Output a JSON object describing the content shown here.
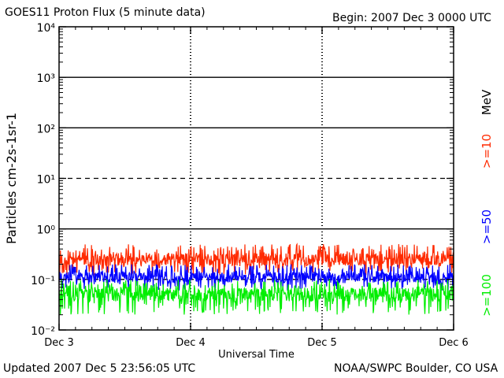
{
  "header": {
    "title": "GOES11 Proton Flux (5 minute data)",
    "begin": "Begin: 2007 Dec 3 0000 UTC"
  },
  "footer": {
    "updated": "Updated 2007 Dec  5 23:56:05 UTC",
    "source": "NOAA/SWPC Boulder, CO USA"
  },
  "chart_data": {
    "type": "line",
    "title": "GOES11 Proton Flux (5 minute data)",
    "xlabel": "Universal Time",
    "ylabel": "Particles cm-2s-1sr-1",
    "y_scale": "log",
    "ylim": [
      0.01,
      10000
    ],
    "y_tick_labels": [
      "10⁻²",
      "10⁻¹",
      "10⁰",
      "10¹",
      "10²",
      "10³",
      "10⁴"
    ],
    "x_ticks": [
      "Dec 3",
      "Dec 4",
      "Dec 5",
      "Dec 6"
    ],
    "xlim": [
      "Dec 3",
      "Dec 6"
    ],
    "legend_unit": "MeV",
    "series": [
      {
        "name": ">=10",
        "color": "#ff2a00",
        "typical": 0.25,
        "range": [
          0.12,
          0.5
        ]
      },
      {
        "name": ">=50",
        "color": "#0000ff",
        "typical": 0.11,
        "range": [
          0.06,
          0.2
        ]
      },
      {
        "name": ">=100",
        "color": "#00ee00",
        "typical": 0.05,
        "range": [
          0.02,
          0.1
        ]
      }
    ],
    "reference_lines": [
      {
        "y": 10,
        "style": "dashed"
      },
      {
        "y": 0.1,
        "style": "dashed"
      }
    ]
  }
}
